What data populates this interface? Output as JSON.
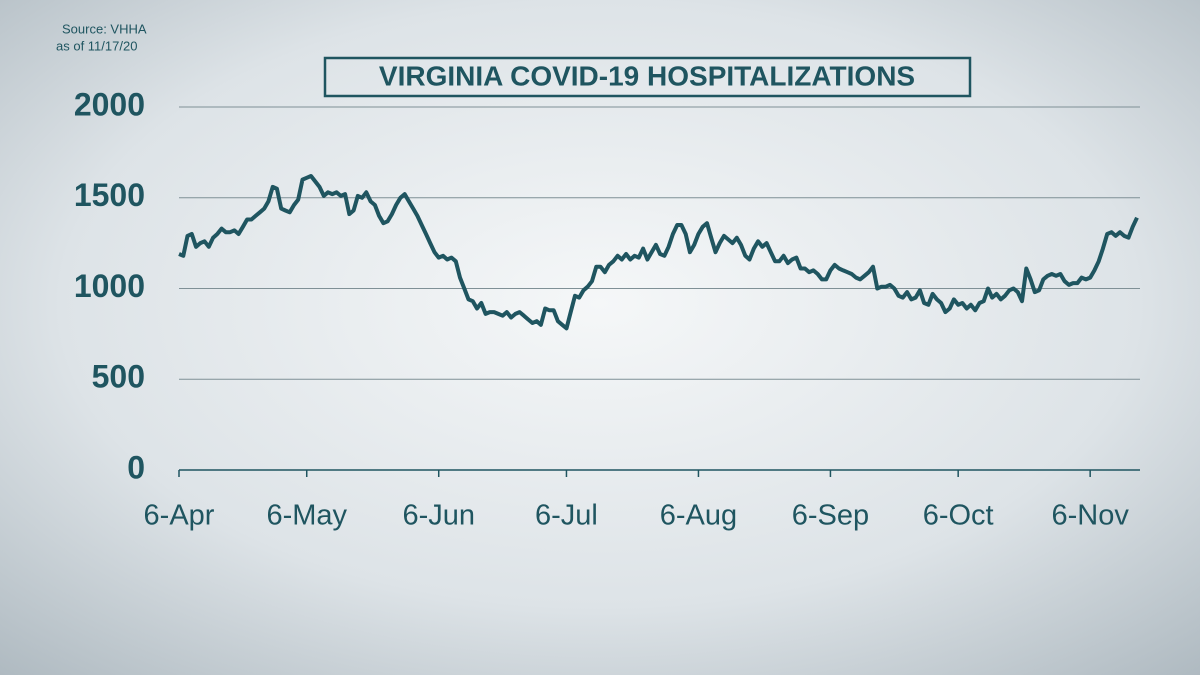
{
  "chart_data": {
    "type": "line",
    "title": "VIRGINIA COVID-19 HOSPITALIZATIONS",
    "source": "Source: VHHA",
    "as_of": "as of 11/17/20",
    "color": "#1f5560",
    "categories": [
      "6-Apr",
      "7-Apr",
      "8-Apr",
      "9-Apr",
      "10-Apr",
      "11-Apr",
      "12-Apr",
      "13-Apr",
      "14-Apr",
      "15-Apr",
      "16-Apr",
      "17-Apr",
      "18-Apr",
      "19-Apr",
      "20-Apr",
      "21-Apr",
      "22-Apr",
      "23-Apr",
      "24-Apr",
      "25-Apr",
      "26-Apr",
      "27-Apr",
      "28-Apr",
      "29-Apr",
      "30-Apr",
      "1-May",
      "2-May",
      "3-May",
      "4-May",
      "5-May",
      "6-May",
      "7-May",
      "8-May",
      "9-May",
      "10-May",
      "11-May",
      "12-May",
      "13-May",
      "14-May",
      "15-May",
      "16-May",
      "17-May",
      "18-May",
      "19-May",
      "20-May",
      "21-May",
      "22-May",
      "23-May",
      "24-May",
      "25-May",
      "26-May",
      "27-May",
      "28-May",
      "29-May",
      "30-May",
      "31-May",
      "1-Jun",
      "2-Jun",
      "3-Jun",
      "4-Jun",
      "5-Jun",
      "6-Jun",
      "7-Jun",
      "8-Jun",
      "9-Jun",
      "10-Jun",
      "11-Jun",
      "12-Jun",
      "13-Jun",
      "14-Jun",
      "15-Jun",
      "16-Jun",
      "17-Jun",
      "18-Jun",
      "19-Jun",
      "20-Jun",
      "21-Jun",
      "22-Jun",
      "23-Jun",
      "24-Jun",
      "25-Jun",
      "26-Jun",
      "27-Jun",
      "28-Jun",
      "29-Jun",
      "30-Jun",
      "1-Jul",
      "2-Jul",
      "3-Jul",
      "4-Jul",
      "5-Jul",
      "6-Jul",
      "7-Jul",
      "8-Jul",
      "9-Jul",
      "10-Jul",
      "11-Jul",
      "12-Jul",
      "13-Jul",
      "14-Jul",
      "15-Jul",
      "16-Jul",
      "17-Jul",
      "18-Jul",
      "19-Jul",
      "20-Jul",
      "21-Jul",
      "22-Jul",
      "23-Jul",
      "24-Jul",
      "25-Jul",
      "26-Jul",
      "27-Jul",
      "28-Jul",
      "29-Jul",
      "30-Jul",
      "31-Jul",
      "1-Aug",
      "2-Aug",
      "3-Aug",
      "4-Aug",
      "5-Aug",
      "6-Aug",
      "7-Aug",
      "8-Aug",
      "9-Aug",
      "10-Aug",
      "11-Aug",
      "12-Aug",
      "13-Aug",
      "14-Aug",
      "15-Aug",
      "16-Aug",
      "17-Aug",
      "18-Aug",
      "19-Aug",
      "20-Aug",
      "21-Aug",
      "22-Aug",
      "23-Aug",
      "24-Aug",
      "25-Aug",
      "26-Aug",
      "27-Aug",
      "28-Aug",
      "29-Aug",
      "30-Aug",
      "31-Aug",
      "1-Sep",
      "2-Sep",
      "3-Sep",
      "4-Sep",
      "5-Sep",
      "6-Sep",
      "7-Sep",
      "8-Sep",
      "9-Sep",
      "10-Sep",
      "11-Sep",
      "12-Sep",
      "13-Sep",
      "14-Sep",
      "15-Sep",
      "16-Sep",
      "17-Sep",
      "18-Sep",
      "19-Sep",
      "20-Sep",
      "21-Sep",
      "22-Sep",
      "23-Sep",
      "24-Sep",
      "25-Sep",
      "26-Sep",
      "27-Sep",
      "28-Sep",
      "29-Sep",
      "30-Sep",
      "1-Oct",
      "2-Oct",
      "3-Oct",
      "4-Oct",
      "5-Oct",
      "6-Oct",
      "7-Oct",
      "8-Oct",
      "9-Oct",
      "10-Oct",
      "11-Oct",
      "12-Oct",
      "13-Oct",
      "14-Oct",
      "15-Oct",
      "16-Oct",
      "17-Oct",
      "18-Oct",
      "19-Oct",
      "20-Oct",
      "21-Oct",
      "22-Oct",
      "23-Oct",
      "24-Oct",
      "25-Oct",
      "26-Oct",
      "27-Oct",
      "28-Oct",
      "29-Oct",
      "30-Oct",
      "31-Oct",
      "1-Nov",
      "2-Nov",
      "3-Nov",
      "4-Nov",
      "5-Nov",
      "6-Nov",
      "7-Nov",
      "8-Nov",
      "9-Nov",
      "10-Nov",
      "11-Nov",
      "12-Nov",
      "13-Nov",
      "14-Nov",
      "15-Nov",
      "16-Nov",
      "17-Nov"
    ],
    "values": [
      1190,
      1180,
      1290,
      1300,
      1230,
      1250,
      1260,
      1230,
      1280,
      1300,
      1330,
      1310,
      1310,
      1320,
      1300,
      1340,
      1380,
      1380,
      1400,
      1420,
      1440,
      1480,
      1560,
      1550,
      1440,
      1430,
      1420,
      1460,
      1490,
      1600,
      1610,
      1620,
      1590,
      1560,
      1510,
      1530,
      1520,
      1530,
      1510,
      1520,
      1410,
      1430,
      1510,
      1500,
      1530,
      1480,
      1460,
      1400,
      1360,
      1370,
      1410,
      1460,
      1500,
      1520,
      1480,
      1440,
      1400,
      1350,
      1300,
      1250,
      1200,
      1170,
      1180,
      1160,
      1170,
      1150,
      1060,
      1000,
      940,
      930,
      890,
      920,
      860,
      870,
      870,
      860,
      850,
      870,
      840,
      860,
      870,
      850,
      830,
      810,
      820,
      800,
      890,
      880,
      880,
      820,
      800,
      780,
      870,
      960,
      950,
      990,
      1010,
      1040,
      1120,
      1120,
      1090,
      1130,
      1150,
      1180,
      1160,
      1190,
      1160,
      1180,
      1170,
      1220,
      1160,
      1200,
      1240,
      1190,
      1180,
      1230,
      1300,
      1350,
      1350,
      1300,
      1200,
      1240,
      1300,
      1340,
      1360,
      1280,
      1200,
      1250,
      1290,
      1270,
      1250,
      1280,
      1240,
      1180,
      1160,
      1220,
      1260,
      1230,
      1250,
      1200,
      1150,
      1150,
      1180,
      1140,
      1160,
      1170,
      1110,
      1110,
      1090,
      1100,
      1080,
      1050,
      1050,
      1100,
      1130,
      1110,
      1100,
      1090,
      1080,
      1060,
      1050,
      1070,
      1090,
      1120,
      1000,
      1010,
      1010,
      1020,
      1000,
      960,
      950,
      980,
      940,
      950,
      990,
      920,
      910,
      970,
      940,
      920,
      870,
      890,
      940,
      910,
      920,
      890,
      910,
      880,
      920,
      930,
      1000,
      950,
      970,
      940,
      960,
      990,
      1000,
      980,
      930,
      1110,
      1050,
      980,
      990,
      1050,
      1070,
      1080,
      1070,
      1080,
      1040,
      1020,
      1030,
      1030,
      1060,
      1050,
      1060,
      1100,
      1150,
      1220,
      1300,
      1310,
      1290,
      1310,
      1290,
      1280,
      1340,
      1390
    ],
    "ylim": [
      0,
      2000
    ],
    "yticks": [
      0,
      500,
      1000,
      1500,
      2000
    ],
    "grid": true
  }
}
